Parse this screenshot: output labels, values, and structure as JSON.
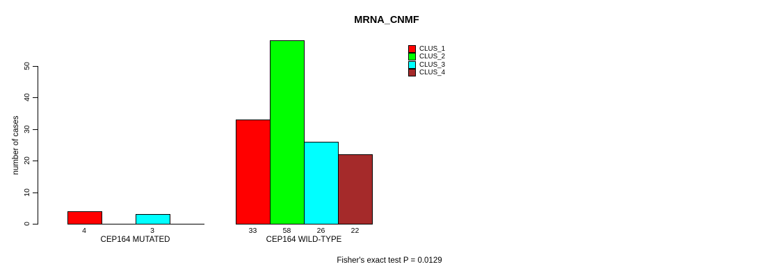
{
  "chart_data": {
    "type": "bar",
    "title": "MRNA_CNMF",
    "ylabel": "number of cases",
    "xlabel": "",
    "ylim": [
      0,
      58
    ],
    "yticks": [
      0,
      10,
      20,
      30,
      40,
      50
    ],
    "grid": false,
    "legend_position": "top-right",
    "categories": [
      "CEP164 MUTATED",
      "CEP164 WILD-TYPE"
    ],
    "series": [
      {
        "name": "CLUS_1",
        "color": "#ff0000",
        "values": [
          4,
          33
        ]
      },
      {
        "name": "CLUS_2",
        "color": "#00ff00",
        "values": [
          0,
          58
        ]
      },
      {
        "name": "CLUS_3",
        "color": "#00ffff",
        "values": [
          3,
          26
        ]
      },
      {
        "name": "CLUS_4",
        "color": "#a52a2a",
        "values": [
          0,
          22
        ]
      }
    ],
    "bar_labels": [
      [
        "4",
        null,
        "3",
        null
      ],
      [
        "33",
        "58",
        "26",
        "22"
      ]
    ],
    "annotation": "Fisher's exact test P = 0.0129"
  }
}
